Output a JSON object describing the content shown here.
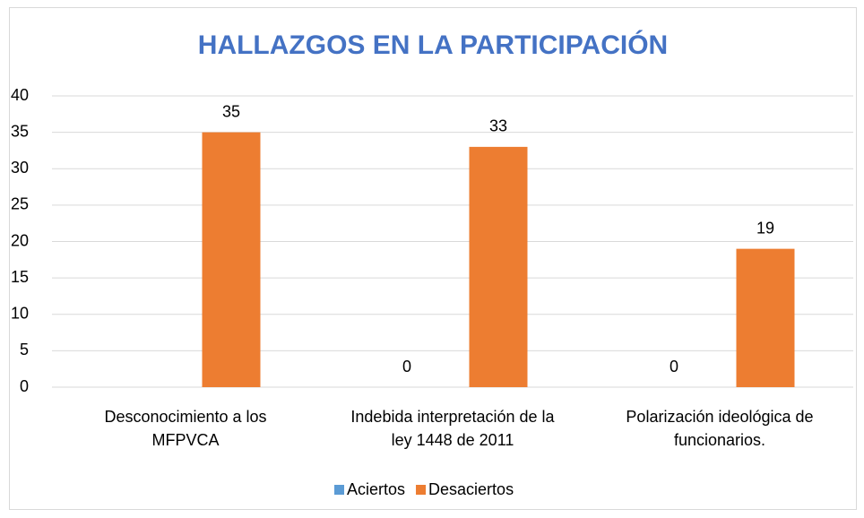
{
  "chart_data": {
    "type": "bar",
    "title": "HALLAZGOS EN LA PARTICIPACIÓN",
    "categories": [
      [
        "Desconocimiento a los",
        "MFPVCA"
      ],
      [
        "Indebida interpretación de la",
        "ley 1448 de 2011"
      ],
      [
        "Polarización ideológica de",
        "funcionarios."
      ]
    ],
    "series": [
      {
        "name": "Aciertos",
        "color": "#5b9bd5",
        "values": [
          null,
          0,
          0
        ]
      },
      {
        "name": "Desaciertos",
        "color": "#ed7d31",
        "values": [
          35,
          33,
          19
        ]
      }
    ],
    "ylim": [
      0,
      40
    ],
    "yticks": [
      0,
      5,
      10,
      15,
      20,
      25,
      30,
      35,
      40
    ],
    "grid": true,
    "legend": "bottom"
  }
}
